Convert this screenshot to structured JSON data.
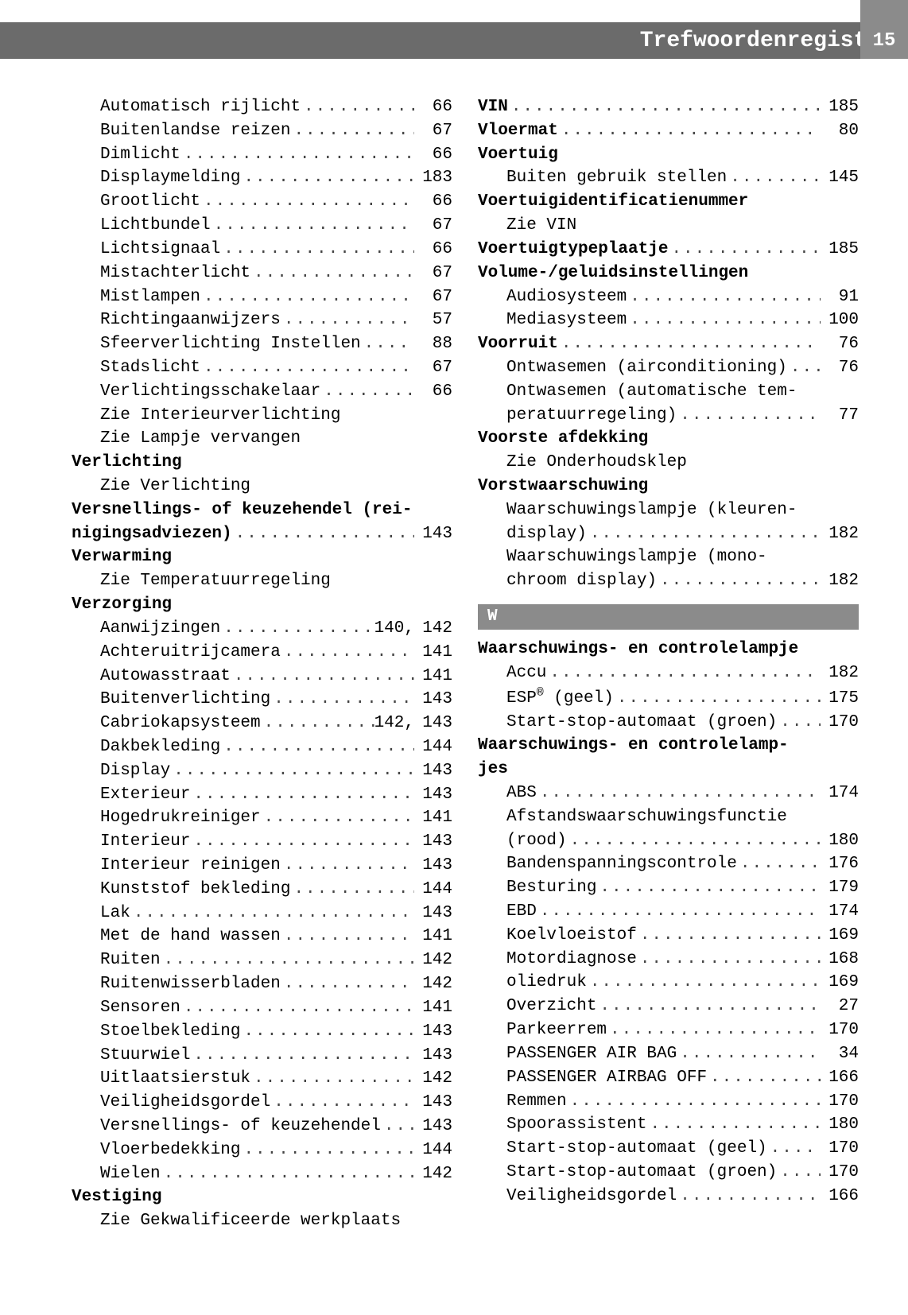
{
  "header": {
    "title": "Trefwoordenregister",
    "page": "15"
  },
  "leftColumn": [
    {
      "type": "entry",
      "indent": true,
      "label": "Automatisch rijlicht",
      "page": "66"
    },
    {
      "type": "entry",
      "indent": true,
      "label": "Buitenlandse reizen",
      "page": "67"
    },
    {
      "type": "entry",
      "indent": true,
      "label": "Dimlicht",
      "page": "66"
    },
    {
      "type": "entry",
      "indent": true,
      "label": "Displaymelding",
      "page": "183"
    },
    {
      "type": "entry",
      "indent": true,
      "label": "Grootlicht",
      "page": "66"
    },
    {
      "type": "entry",
      "indent": true,
      "label": "Lichtbundel",
      "page": "67"
    },
    {
      "type": "entry",
      "indent": true,
      "label": "Lichtsignaal",
      "page": "66"
    },
    {
      "type": "entry",
      "indent": true,
      "label": "Mistachterlicht",
      "page": "67"
    },
    {
      "type": "entry",
      "indent": true,
      "label": "Mistlampen",
      "page": "67"
    },
    {
      "type": "entry",
      "indent": true,
      "label": "Richtingaanwijzers",
      "page": "57"
    },
    {
      "type": "entry",
      "indent": true,
      "label": "Sfeerverlichting Instellen",
      "page": "88"
    },
    {
      "type": "entry",
      "indent": true,
      "label": "Stadslicht",
      "page": "67"
    },
    {
      "type": "entry",
      "indent": true,
      "label": "Verlichtingsschakelaar",
      "page": "66"
    },
    {
      "type": "noref",
      "indent": true,
      "label": "Zie Interieurverlichting"
    },
    {
      "type": "noref",
      "indent": true,
      "label": "Zie Lampje vervangen"
    },
    {
      "type": "noref",
      "indent": false,
      "bold": true,
      "label": "Verlichting"
    },
    {
      "type": "noref",
      "indent": true,
      "label": "Zie Verlichting"
    },
    {
      "type": "noref",
      "indent": false,
      "bold": true,
      "label": "Versnellings- of keuzehendel (rei-"
    },
    {
      "type": "entry",
      "indent": false,
      "bold": true,
      "label": "nigingsadviezen)",
      "page": "143"
    },
    {
      "type": "noref",
      "indent": false,
      "bold": true,
      "label": "Verwarming"
    },
    {
      "type": "noref",
      "indent": true,
      "label": "Zie Temperatuurregeling"
    },
    {
      "type": "noref",
      "indent": false,
      "bold": true,
      "label": "Verzorging"
    },
    {
      "type": "entry2",
      "indent": true,
      "label": "Aanwijzingen",
      "page": "140,",
      "page2": "142"
    },
    {
      "type": "entry",
      "indent": true,
      "label": "Achteruitrijcamera",
      "page": "141"
    },
    {
      "type": "entry",
      "indent": true,
      "label": "Autowasstraat",
      "page": "141"
    },
    {
      "type": "entry",
      "indent": true,
      "label": "Buitenverlichting",
      "page": "143"
    },
    {
      "type": "entry2",
      "indent": true,
      "label": "Cabriokapsysteem",
      "page": "142,",
      "page2": "143"
    },
    {
      "type": "entry",
      "indent": true,
      "label": "Dakbekleding",
      "page": "144"
    },
    {
      "type": "entry",
      "indent": true,
      "label": "Display",
      "page": "143"
    },
    {
      "type": "entry",
      "indent": true,
      "label": "Exterieur",
      "page": "143"
    },
    {
      "type": "entry",
      "indent": true,
      "label": "Hogedrukreiniger",
      "page": "141"
    },
    {
      "type": "entry",
      "indent": true,
      "label": "Interieur",
      "page": "143"
    },
    {
      "type": "entry",
      "indent": true,
      "label": "Interieur reinigen",
      "page": "143"
    },
    {
      "type": "entry",
      "indent": true,
      "label": "Kunststof bekleding",
      "page": "144"
    },
    {
      "type": "entry",
      "indent": true,
      "label": "Lak",
      "page": "143"
    },
    {
      "type": "entry",
      "indent": true,
      "label": "Met de hand wassen",
      "page": "141"
    },
    {
      "type": "entry",
      "indent": true,
      "label": "Ruiten",
      "page": "142"
    },
    {
      "type": "entry",
      "indent": true,
      "label": "Ruitenwisserbladen",
      "page": "142"
    },
    {
      "type": "entry",
      "indent": true,
      "label": "Sensoren",
      "page": "141"
    },
    {
      "type": "entry",
      "indent": true,
      "label": "Stoelbekleding",
      "page": "143"
    },
    {
      "type": "entry",
      "indent": true,
      "label": "Stuurwiel",
      "page": "143"
    },
    {
      "type": "entry",
      "indent": true,
      "label": "Uitlaatsierstuk",
      "page": "142"
    },
    {
      "type": "entry",
      "indent": true,
      "label": "Veiligheidsgordel",
      "page": "143"
    },
    {
      "type": "entry",
      "indent": true,
      "label": "Versnellings- of keuzehendel",
      "page": "143"
    },
    {
      "type": "entry",
      "indent": true,
      "label": "Vloerbedekking",
      "page": "144"
    },
    {
      "type": "entry",
      "indent": true,
      "label": "Wielen",
      "page": "142"
    },
    {
      "type": "noref",
      "indent": false,
      "bold": true,
      "label": "Vestiging"
    },
    {
      "type": "noref",
      "indent": true,
      "label": "Zie Gekwalificeerde werkplaats"
    }
  ],
  "rightColumn": [
    {
      "type": "entry",
      "indent": false,
      "bold": true,
      "label": "VIN",
      "page": "185"
    },
    {
      "type": "entry",
      "indent": false,
      "bold": true,
      "label": "Vloermat",
      "page": "80"
    },
    {
      "type": "noref",
      "indent": false,
      "bold": true,
      "label": "Voertuig"
    },
    {
      "type": "entry",
      "indent": true,
      "label": "Buiten gebruik stellen",
      "page": "145"
    },
    {
      "type": "noref",
      "indent": false,
      "bold": true,
      "label": "Voertuigidentificatienummer"
    },
    {
      "type": "noref",
      "indent": true,
      "label": "Zie VIN"
    },
    {
      "type": "entry",
      "indent": false,
      "bold": true,
      "label": "Voertuigtypeplaatje",
      "page": "185"
    },
    {
      "type": "noref",
      "indent": false,
      "bold": true,
      "label": "Volume-/geluidsinstellingen"
    },
    {
      "type": "entry",
      "indent": true,
      "label": "Audiosysteem",
      "page": "91"
    },
    {
      "type": "entry",
      "indent": true,
      "label": "Mediasysteem",
      "page": "100"
    },
    {
      "type": "entry",
      "indent": false,
      "bold": true,
      "label": "Voorruit",
      "page": "76"
    },
    {
      "type": "entry",
      "indent": true,
      "label": "Ontwasemen (airconditioning)",
      "page": "76"
    },
    {
      "type": "noref",
      "indent": true,
      "label": "Ontwasemen (automatische tem-"
    },
    {
      "type": "entry",
      "indent": true,
      "label": "peratuurregeling)",
      "page": "77"
    },
    {
      "type": "noref",
      "indent": false,
      "bold": true,
      "label": "Voorste afdekking"
    },
    {
      "type": "noref",
      "indent": true,
      "label": "Zie Onderhoudsklep"
    },
    {
      "type": "noref",
      "indent": false,
      "bold": true,
      "label": "Vorstwaarschuwing"
    },
    {
      "type": "noref",
      "indent": true,
      "label": "Waarschuwingslampje (kleuren-"
    },
    {
      "type": "entry",
      "indent": true,
      "label": "display)",
      "page": "182"
    },
    {
      "type": "noref",
      "indent": true,
      "label": "Waarschuwingslampje (mono-"
    },
    {
      "type": "entry",
      "indent": true,
      "label": "chroom display)",
      "page": "182"
    },
    {
      "type": "section",
      "label": "W"
    },
    {
      "type": "noref",
      "indent": false,
      "bold": true,
      "label": "Waarschuwings- en controlelampje"
    },
    {
      "type": "entry",
      "indent": true,
      "label": "Accu",
      "page": "182"
    },
    {
      "type": "entry",
      "indent": true,
      "html": true,
      "label": "ESP<sup>®</sup> (geel)",
      "page": "175"
    },
    {
      "type": "entry",
      "indent": true,
      "label": "Start-stop-automaat (groen)",
      "page": "170"
    },
    {
      "type": "noref",
      "indent": false,
      "bold": true,
      "label": "Waarschuwings- en controlelamp-"
    },
    {
      "type": "noref",
      "indent": false,
      "bold": true,
      "label": "jes"
    },
    {
      "type": "entry",
      "indent": true,
      "label": "ABS",
      "page": "174"
    },
    {
      "type": "noref",
      "indent": true,
      "label": "Afstandswaarschuwingsfunctie"
    },
    {
      "type": "entry",
      "indent": true,
      "label": "(rood)",
      "page": "180"
    },
    {
      "type": "entry",
      "indent": true,
      "label": "Bandenspanningscontrole",
      "page": "176"
    },
    {
      "type": "entry",
      "indent": true,
      "label": "Besturing",
      "page": "179"
    },
    {
      "type": "entry",
      "indent": true,
      "label": "EBD",
      "page": "174"
    },
    {
      "type": "entry",
      "indent": true,
      "label": "Koelvloeistof",
      "page": "169"
    },
    {
      "type": "entry",
      "indent": true,
      "label": "Motordiagnose",
      "page": "168"
    },
    {
      "type": "entry",
      "indent": true,
      "label": "oliedruk",
      "page": "169"
    },
    {
      "type": "entry",
      "indent": true,
      "label": "Overzicht",
      "page": "27"
    },
    {
      "type": "entry",
      "indent": true,
      "label": "Parkeerrem",
      "page": "170"
    },
    {
      "type": "entry",
      "indent": true,
      "label": "PASSENGER AIR BAG",
      "page": "34"
    },
    {
      "type": "entry",
      "indent": true,
      "label": "PASSENGER AIRBAG OFF",
      "page": "166"
    },
    {
      "type": "entry",
      "indent": true,
      "label": "Remmen",
      "page": "170"
    },
    {
      "type": "entry",
      "indent": true,
      "label": "Spoorassistent",
      "page": "180"
    },
    {
      "type": "entry",
      "indent": true,
      "label": "Start-stop-automaat (geel)",
      "page": "170"
    },
    {
      "type": "entry",
      "indent": true,
      "label": "Start-stop-automaat (groen)",
      "page": "170"
    },
    {
      "type": "entry",
      "indent": true,
      "label": "Veiligheidsgordel",
      "page": "166"
    }
  ]
}
